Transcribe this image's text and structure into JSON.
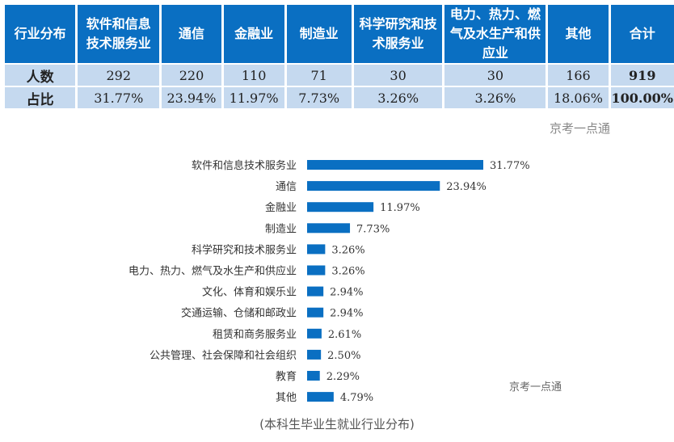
{
  "table": {
    "headers": [
      "行业分布",
      "软件和信息技术服务业",
      "通信",
      "金融业",
      "制造业",
      "科学研究和技术服务业",
      "电力、热力、燃气及水生产和供应业",
      "其他",
      "合计"
    ],
    "rows": [
      {
        "label": "人数",
        "values": [
          "292",
          "220",
          "110",
          "71",
          "30",
          "30",
          "166",
          "919"
        ]
      },
      {
        "label": "占比",
        "values": [
          "31.77%",
          "23.94%",
          "11.97%",
          "7.73%",
          "3.26%",
          "3.26%",
          "18.06%",
          "100.00%"
        ]
      }
    ]
  },
  "watermark": "京考一点通",
  "caption": "(本科生毕业生就业行业分布)",
  "colors": {
    "header": "#0a6fc2",
    "row": "#c5d9ef",
    "bar": "#0a6fc2"
  },
  "chart_data": {
    "type": "bar",
    "orientation": "horizontal",
    "categories": [
      "软件和信息技术服务业",
      "通信",
      "金融业",
      "制造业",
      "科学研究和技术服务业",
      "电力、热力、燃气及水生产和供应业",
      "文化、体育和娱乐业",
      "交通运输、仓储和邮政业",
      "租赁和商务服务业",
      "公共管理、社会保障和社会组织",
      "教育",
      "其他"
    ],
    "values": [
      31.77,
      23.94,
      11.97,
      7.73,
      3.26,
      3.26,
      2.94,
      2.94,
      2.61,
      2.5,
      2.29,
      4.79
    ],
    "labels": [
      "31.77%",
      "23.94%",
      "11.97%",
      "7.73%",
      "3.26%",
      "3.26%",
      "2.94%",
      "2.94%",
      "2.61%",
      "2.50%",
      "2.29%",
      "4.79%"
    ],
    "title": "(本科生毕业生就业行业分布)",
    "xlabel": "",
    "ylabel": "",
    "xlim": [
      0,
      32
    ],
    "grid": false
  }
}
